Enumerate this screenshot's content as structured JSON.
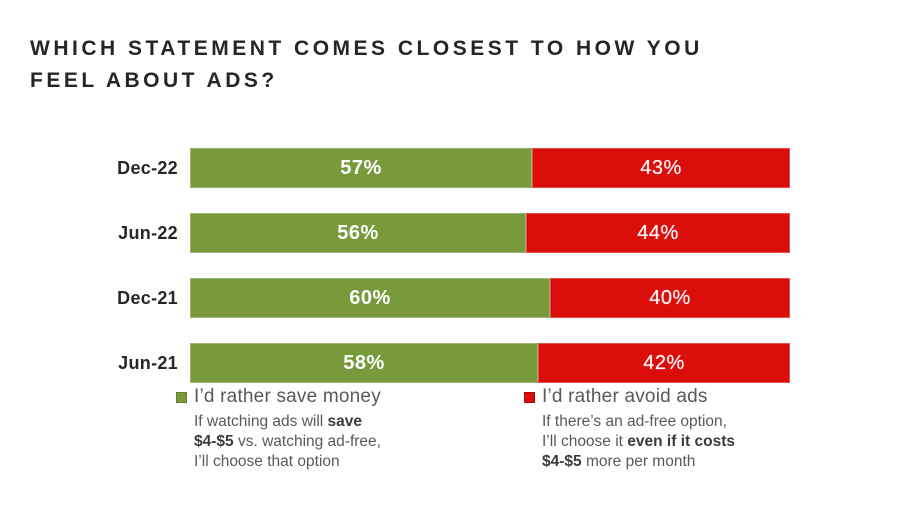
{
  "title": "WHICH STATEMENT COMES CLOSEST TO HOW YOU FEEL ABOUT ADS?",
  "colors": {
    "save_green": "#789A3B",
    "avoid_red": "#DB0E0C",
    "title_text": "#262626",
    "legend_text": "#595959"
  },
  "chart_data": {
    "type": "bar",
    "subtype": "horizontal-stacked",
    "title": "WHICH STATEMENT COMES CLOSEST TO HOW YOU FEEL ABOUT ADS?",
    "categories": [
      "Dec-22",
      "Jun-22",
      "Dec-21",
      "Jun-21"
    ],
    "series": [
      {
        "name": "I’d rather save money",
        "color": "#789A3B",
        "values": [
          57,
          56,
          60,
          58
        ]
      },
      {
        "name": "I’d rather avoid ads",
        "color": "#DB0E0C",
        "values": [
          43,
          44,
          40,
          42
        ]
      }
    ],
    "value_format": "percent",
    "data_labels": [
      "57%",
      "56%",
      "60%",
      "58%",
      "43%",
      "44%",
      "40%",
      "42%"
    ],
    "xlim": [
      0,
      100
    ],
    "grid": false,
    "legend_position": "bottom"
  },
  "legend": {
    "save": {
      "label": "I’d rather save money",
      "description_lines": [
        [
          {
            "text": "If watching ads will ",
            "bold": false
          },
          {
            "text": "save",
            "bold": true
          }
        ],
        [
          {
            "text": "$4-$5",
            "bold": true
          },
          {
            "text": " vs. watching ad-free,",
            "bold": false
          }
        ],
        [
          {
            "text": "I’ll choose that option",
            "bold": false
          }
        ]
      ]
    },
    "avoid": {
      "label": "I’d rather avoid ads",
      "description_lines": [
        [
          {
            "text": "If there’s an ad-free option,",
            "bold": false
          }
        ],
        [
          {
            "text": "I’ll choose it ",
            "bold": false
          },
          {
            "text": "even if it costs",
            "bold": true
          }
        ],
        [
          {
            "text": "$4-$5",
            "bold": true
          },
          {
            "text": " more per month",
            "bold": false
          }
        ]
      ]
    }
  }
}
